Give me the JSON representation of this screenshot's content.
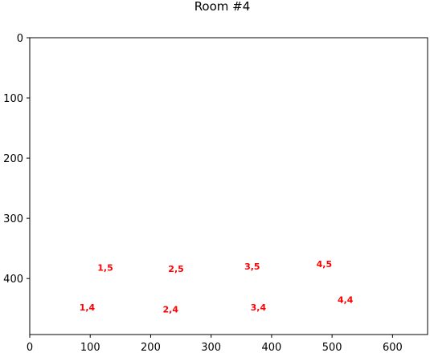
{
  "chart_data": {
    "type": "scatter",
    "title": "Room #4",
    "xlabel": "",
    "ylabel": "",
    "xlim": [
      0,
      658
    ],
    "ylim": [
      493,
      0
    ],
    "y_inverted": true,
    "grid": false,
    "x_ticks": [
      0,
      100,
      200,
      300,
      400,
      500,
      600
    ],
    "y_ticks": [
      0,
      100,
      200,
      300,
      400
    ],
    "label_color": "#ff0000",
    "points": [
      {
        "label": "1,5",
        "x": 125,
        "y": 382
      },
      {
        "label": "2,5",
        "x": 242,
        "y": 384
      },
      {
        "label": "3,5",
        "x": 368,
        "y": 380
      },
      {
        "label": "4,5",
        "x": 487,
        "y": 376
      },
      {
        "label": "1,4",
        "x": 95,
        "y": 448
      },
      {
        "label": "2,4",
        "x": 233,
        "y": 451
      },
      {
        "label": "3,4",
        "x": 378,
        "y": 448
      },
      {
        "label": "4,4",
        "x": 522,
        "y": 435
      }
    ]
  }
}
